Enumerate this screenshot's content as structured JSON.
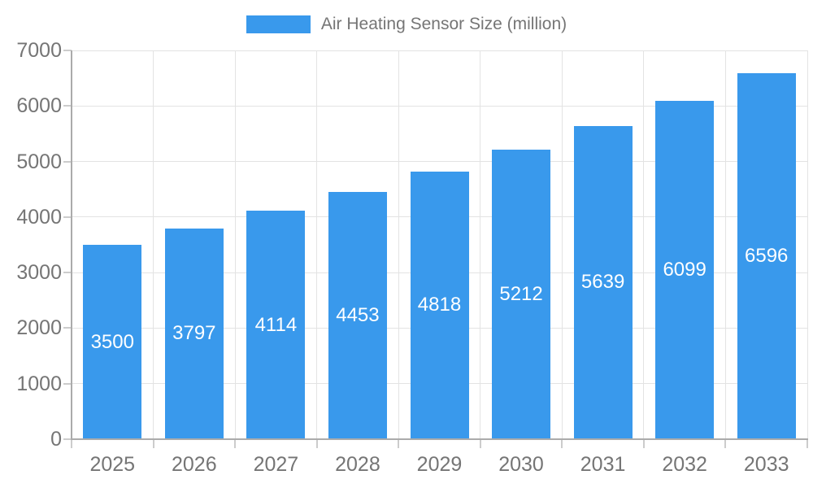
{
  "chart_data": {
    "type": "bar",
    "title": "",
    "legend_label": "Air Heating Sensor Size (million)",
    "legend_position": "top",
    "categories": [
      "2025",
      "2026",
      "2027",
      "2028",
      "2029",
      "2030",
      "2031",
      "2032",
      "2033"
    ],
    "values": [
      3500,
      3797,
      4114,
      4453,
      4818,
      5212,
      5639,
      6099,
      6596
    ],
    "xlabel": "",
    "ylabel": "",
    "ylim": [
      0,
      7000
    ],
    "ytick_step": 1000,
    "ytick_labels": [
      "0",
      "1000",
      "2000",
      "3000",
      "4000",
      "5000",
      "6000",
      "7000"
    ],
    "grid": true,
    "bar_value_labels_shown": true,
    "colors": {
      "bar": "#3999EC",
      "bar_label": "#FFFFFF",
      "axis_text": "#757575",
      "legend_text": "#757575",
      "gridline": "#E3E3E3",
      "axis_line": "#ABABAB",
      "tick": "#CCCCCC",
      "background": "#FFFFFF"
    }
  }
}
